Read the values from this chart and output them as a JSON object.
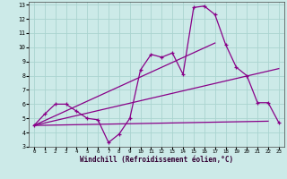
{
  "xlabel": "Windchill (Refroidissement éolien,°C)",
  "background_color": "#cceae8",
  "line_color": "#880088",
  "grid_color": "#aad4d0",
  "xlim": [
    -0.5,
    23.5
  ],
  "ylim": [
    3,
    13.2
  ],
  "xticks": [
    0,
    1,
    2,
    3,
    4,
    5,
    6,
    7,
    8,
    9,
    10,
    11,
    12,
    13,
    14,
    15,
    16,
    17,
    18,
    19,
    20,
    21,
    22,
    23
  ],
  "yticks": [
    3,
    4,
    5,
    6,
    7,
    8,
    9,
    10,
    11,
    12,
    13
  ],
  "line1_x": [
    0,
    1,
    2,
    3,
    4,
    5,
    6,
    7,
    8,
    9,
    10,
    11,
    12,
    13,
    14,
    15,
    16,
    17,
    18,
    19,
    20,
    21,
    22,
    23
  ],
  "line1_y": [
    4.5,
    5.3,
    6.0,
    6.0,
    5.5,
    5.0,
    4.9,
    3.3,
    3.9,
    5.0,
    8.4,
    9.5,
    9.3,
    9.6,
    8.1,
    12.8,
    12.9,
    12.3,
    10.2,
    8.6,
    8.0,
    6.1,
    6.1,
    4.7
  ],
  "line2_x": [
    0,
    17
  ],
  "line2_y": [
    4.5,
    10.3
  ],
  "line3_x": [
    0,
    23
  ],
  "line3_y": [
    4.5,
    8.5
  ],
  "line4_x": [
    0,
    22
  ],
  "line4_y": [
    4.5,
    4.8
  ]
}
